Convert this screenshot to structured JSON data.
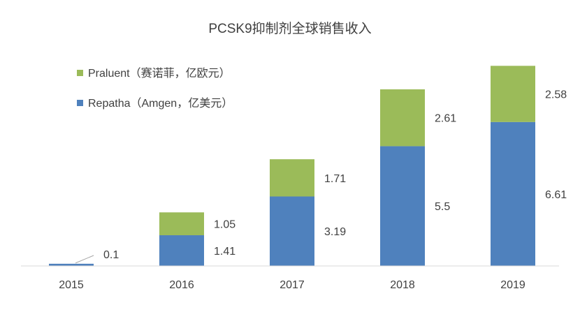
{
  "chart_data": {
    "type": "bar",
    "stacked": true,
    "title": "PCSK9抑制剂全球销售收入",
    "categories": [
      "2015",
      "2016",
      "2017",
      "2018",
      "2019"
    ],
    "series": [
      {
        "name": "Repatha（Amgen，亿美元）",
        "color": "#4F81BD",
        "values": [
          0.1,
          1.41,
          3.19,
          5.5,
          6.61
        ]
      },
      {
        "name": "Praluent（赛诺菲，亿欧元）",
        "color": "#9BBB59",
        "values": [
          0,
          1.05,
          1.71,
          2.61,
          2.58
        ]
      }
    ],
    "data_labels": {
      "Repatha": [
        "0.1",
        "1.41",
        "3.19",
        "5.5",
        "6.61"
      ],
      "Praluent": [
        "",
        "1.05",
        "1.71",
        "2.61",
        "2.58"
      ]
    },
    "legend_position": "top-left",
    "grid": false,
    "ylim": [
      0,
      9.2
    ]
  }
}
